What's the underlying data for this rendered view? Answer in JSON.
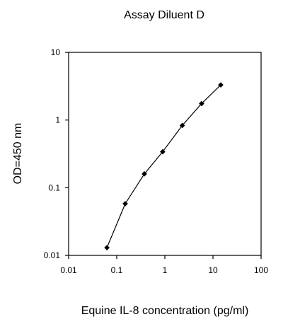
{
  "chart_data": {
    "type": "line",
    "title": "Assay Diluent D",
    "xlabel": "Equine IL-8 concentration (pg/ml)",
    "ylabel": "OD=450 nm",
    "x_scale": "log",
    "y_scale": "log",
    "xlim": [
      0.01,
      100
    ],
    "ylim": [
      0.01,
      10
    ],
    "x_ticks": [
      0.01,
      0.1,
      1,
      10,
      100
    ],
    "x_tick_labels": [
      "0.01",
      "0.1",
      "1",
      "10",
      "100"
    ],
    "y_ticks": [
      0.01,
      0.1,
      1,
      10
    ],
    "y_tick_labels": [
      "0.01",
      "0.1",
      "1",
      "10"
    ],
    "grid": false,
    "legend": "none",
    "series": [
      {
        "x": [
          0.0625,
          0.15,
          0.375,
          0.9,
          2.3,
          5.8,
          14.5
        ],
        "y": [
          0.013,
          0.058,
          0.16,
          0.34,
          0.83,
          1.75,
          3.3
        ],
        "color": "#000000",
        "marker": "diamond"
      }
    ]
  }
}
